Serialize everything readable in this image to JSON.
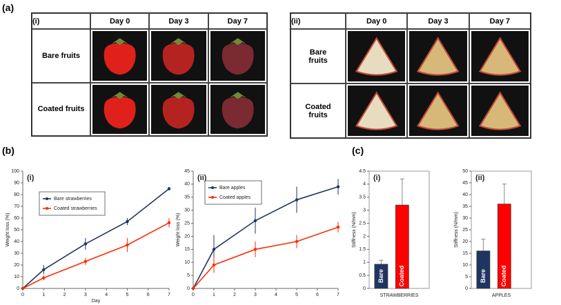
{
  "panels": {
    "a": "(a)",
    "b": "(b)",
    "c": "(c)"
  },
  "photo_tables": [
    {
      "label": "(i)",
      "columns": [
        "Day 0",
        "Day 3",
        "Day 7"
      ],
      "rows": [
        "Bare fruits",
        "Coated fruits"
      ]
    },
    {
      "label": "(ii)",
      "columns": [
        "Day 0",
        "Day 3",
        "Day 7"
      ],
      "rows": [
        "Bare fruits",
        "Coated fruits"
      ]
    }
  ],
  "chart_data": [
    {
      "type": "line",
      "title": "(i)",
      "x_label": "Day",
      "y_label": "Weight loss (%)",
      "x": [
        0,
        1,
        3,
        5,
        7
      ],
      "xlim": [
        0,
        7
      ],
      "xticks": [
        0,
        1,
        2,
        3,
        4,
        5,
        6,
        7
      ],
      "ylim": [
        0,
        100
      ],
      "yticks": [
        0,
        10,
        20,
        30,
        40,
        50,
        60,
        70,
        80,
        90,
        100
      ],
      "legend": "upper left",
      "series": [
        {
          "name": "Bare strawberries",
          "color": "#1f3461",
          "values": [
            0,
            16,
            38,
            57,
            85
          ],
          "errors": [
            0,
            4,
            5,
            3,
            1.5
          ]
        },
        {
          "name": "Coated strawberries",
          "color": "#ff2a00",
          "values": [
            0,
            9,
            23,
            37,
            56
          ],
          "errors": [
            0,
            2,
            3,
            6,
            4
          ]
        }
      ]
    },
    {
      "type": "line",
      "title": "(ii)",
      "y_label": "Weight loss (%)",
      "x": [
        0,
        1,
        3,
        5,
        7
      ],
      "xlim": [
        0,
        7
      ],
      "xticks": [
        0,
        1,
        2,
        3,
        4,
        5,
        6,
        7
      ],
      "ylim": [
        0,
        45
      ],
      "yticks": [
        0,
        5,
        10,
        15,
        20,
        25,
        30,
        35,
        40,
        45
      ],
      "legend": "upper left",
      "series": [
        {
          "name": "Bare apples",
          "color": "#1f3461",
          "values": [
            0,
            15,
            26,
            34,
            39
          ],
          "errors": [
            0,
            5.5,
            5,
            5,
            3
          ]
        },
        {
          "name": "Coated apples",
          "color": "#ff2a00",
          "values": [
            0,
            9,
            15,
            18,
            23.5
          ],
          "errors": [
            0,
            3,
            3,
            2.5,
            2
          ]
        }
      ]
    },
    {
      "type": "bar",
      "title": "(i)",
      "x_label": "STRAWBERRIES",
      "y_label": "Stiffness (N/mm)",
      "categories": [
        "Bare",
        "Coated"
      ],
      "values": [
        0.93,
        3.2
      ],
      "errors": [
        0.15,
        1.0
      ],
      "colors": [
        "#1f3461",
        "#ff0000"
      ],
      "ylim": [
        0,
        4.5
      ],
      "yticks": [
        0,
        0.5,
        1,
        1.5,
        2,
        2.5,
        3,
        3.5,
        4,
        4.5
      ]
    },
    {
      "type": "bar",
      "title": "(ii)",
      "x_label": "APPLES",
      "y_label": "Stiffness (N/mm)",
      "categories": [
        "Bare",
        "Coated"
      ],
      "values": [
        16,
        36
      ],
      "errors": [
        5,
        8.5
      ],
      "colors": [
        "#1f3461",
        "#ff0000"
      ],
      "ylim": [
        0,
        50
      ],
      "yticks": [
        0,
        5,
        10,
        15,
        20,
        25,
        30,
        35,
        40,
        45,
        50
      ]
    }
  ]
}
